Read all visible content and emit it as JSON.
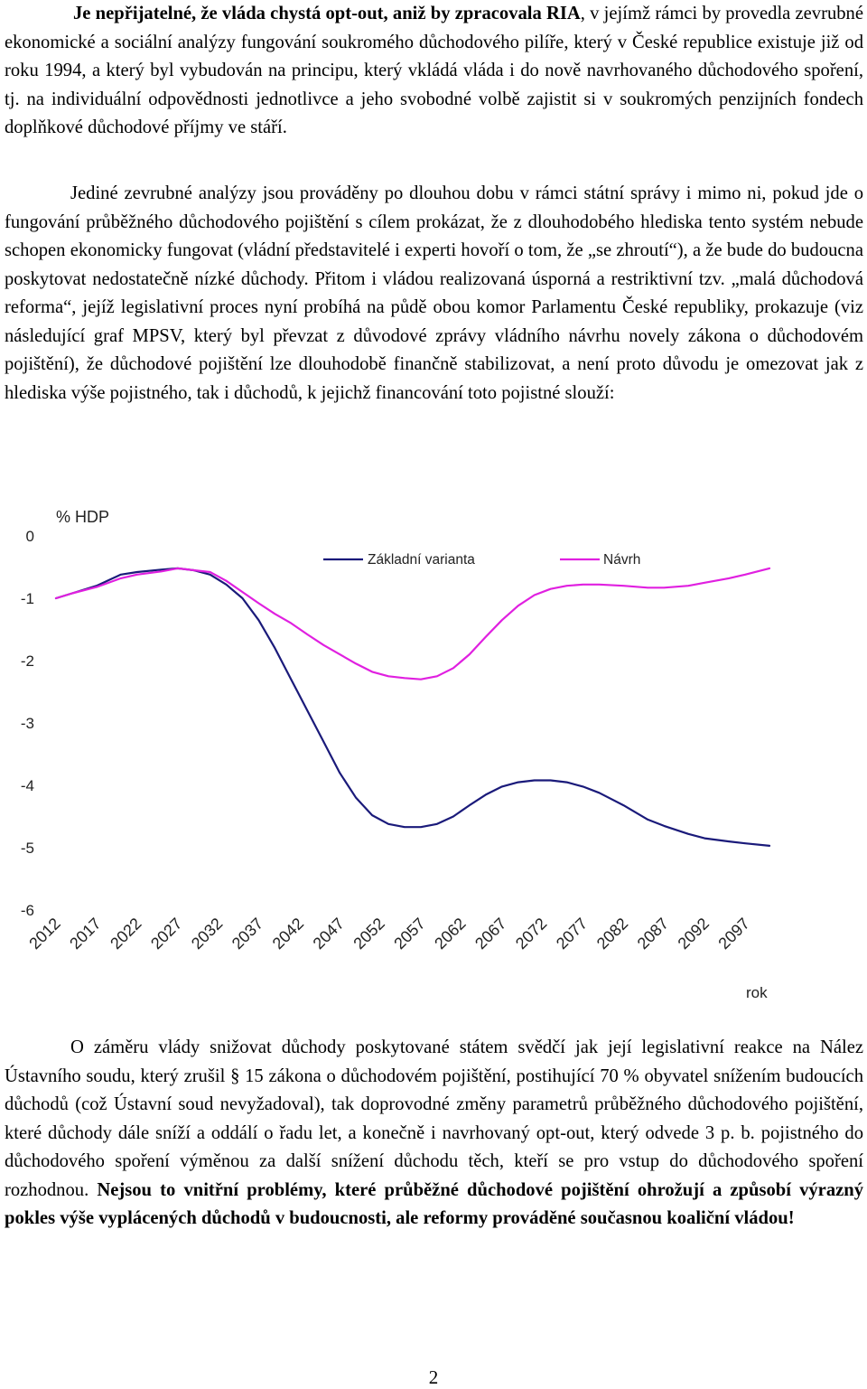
{
  "paragraphs": {
    "p1": {
      "lead_bold": "Je nepřijatelné, že vláda chystá opt-out, aniž by zpracovala RIA",
      "rest": ", v jejímž rámci by provedla zevrubné ekonomické a sociální analýzy fungování soukromého důchodového pilíře, který v České republice existuje již od roku 1994, a který byl vybudován na principu, který vkládá vláda i do nově navrhovaného důchodového spoření, tj. na individuální odpovědnosti jednotlivce a jeho svobodné volbě zajistit si v soukromých penzijních fondech doplňkové důchodové příjmy ve stáří."
    },
    "p2": {
      "text": "Jediné zevrubné analýzy jsou prováděny po dlouhou dobu v rámci státní správy i mimo ni, pokud jde o fungování průběžného důchodového pojištění s cílem prokázat, že z dlouhodobého hlediska tento systém nebude schopen ekonomicky fungovat (vládní představitelé i experti hovoří o tom, že „se zhroutí“), a že bude do budoucna poskytovat nedostatečně nízké důchody. Přitom i vládou realizovaná úsporná a restriktivní tzv. „malá důchodová reforma“, jejíž legislativní proces nyní probíhá na půdě obou komor Parlamentu České republiky, prokazuje (viz následující graf MPSV, který byl převzat z důvodové zprávy vládního návrhu novely zákona o důchodovém pojištění), že důchodové pojištění lze dlouhodobě finančně stabilizovat, a není proto důvodu je omezovat jak z hlediska výše pojistného, tak i důchodů, k jejichž financování toto pojistné slouží:"
    },
    "p3": {
      "text": "O záměru vlády snižovat důchody poskytované státem svědčí jak její legislativní reakce na Nález Ústavního soudu, který zrušil § 15 zákona o důchodovém pojištění, postihující 70 % obyvatel snížením budoucích důchodů (což Ústavní soud nevyžadoval), tak doprovodné změny parametrů průběžného důchodového pojištění, které důchody dále sníží a oddálí o řadu let, a konečně i navrhovaný opt-out, který odvede 3 p. b. pojistného do důchodového spoření výměnou za další snížení důchodu těch, kteří se pro vstup do důchodového spoření rozhodnou. ",
      "tail_bold": "Nejsou to vnitřní problémy, které průběžné důchodové pojištění ohrožují a způsobí výrazný pokles výše vyplácených důchodů v budoucnosti, ale reformy prováděné současnou koaliční vládou!"
    }
  },
  "chart_data": {
    "type": "line",
    "ylabel": "% HDP",
    "xlabel": "rok",
    "ylim": [
      -6,
      0
    ],
    "yticks": [
      0,
      -1,
      -2,
      -3,
      -4,
      -5,
      -6
    ],
    "xticks": [
      2012,
      2017,
      2022,
      2027,
      2032,
      2037,
      2042,
      2047,
      2052,
      2057,
      2062,
      2067,
      2072,
      2077,
      2082,
      2087,
      2092,
      2097
    ],
    "legend_placement": "top",
    "grid": false,
    "series": [
      {
        "name": "Základní varianta",
        "color": "#1a1a7a",
        "x": [
          2012,
          2014,
          2017,
          2020,
          2022,
          2025,
          2027,
          2029,
          2031,
          2033,
          2035,
          2037,
          2039,
          2041,
          2043,
          2045,
          2047,
          2049,
          2051,
          2053,
          2055,
          2057,
          2059,
          2061,
          2063,
          2065,
          2067,
          2069,
          2071,
          2073,
          2075,
          2077,
          2079,
          2082,
          2085,
          2087,
          2090,
          2092,
          2095,
          2097,
          2100
        ],
        "values": [
          -1.0,
          -0.92,
          -0.8,
          -0.62,
          -0.58,
          -0.54,
          -0.52,
          -0.55,
          -0.62,
          -0.78,
          -1.0,
          -1.35,
          -1.8,
          -2.3,
          -2.8,
          -3.3,
          -3.8,
          -4.2,
          -4.48,
          -4.62,
          -4.67,
          -4.67,
          -4.62,
          -4.5,
          -4.32,
          -4.15,
          -4.02,
          -3.95,
          -3.92,
          -3.92,
          -3.95,
          -4.02,
          -4.12,
          -4.32,
          -4.55,
          -4.65,
          -4.78,
          -4.85,
          -4.9,
          -4.93,
          -4.97
        ]
      },
      {
        "name": "Návrh",
        "color": "#e020e0",
        "x": [
          2012,
          2014,
          2017,
          2020,
          2022,
          2025,
          2027,
          2029,
          2031,
          2033,
          2035,
          2037,
          2039,
          2041,
          2043,
          2045,
          2047,
          2049,
          2051,
          2053,
          2055,
          2057,
          2059,
          2061,
          2063,
          2065,
          2067,
          2069,
          2071,
          2073,
          2075,
          2077,
          2079,
          2082,
          2085,
          2087,
          2090,
          2092,
          2095,
          2097,
          2100
        ],
        "values": [
          -1.0,
          -0.92,
          -0.82,
          -0.68,
          -0.62,
          -0.57,
          -0.52,
          -0.55,
          -0.58,
          -0.72,
          -0.9,
          -1.08,
          -1.25,
          -1.4,
          -1.58,
          -1.75,
          -1.9,
          -2.05,
          -2.18,
          -2.25,
          -2.28,
          -2.3,
          -2.25,
          -2.12,
          -1.9,
          -1.62,
          -1.35,
          -1.12,
          -0.95,
          -0.85,
          -0.8,
          -0.78,
          -0.78,
          -0.8,
          -0.83,
          -0.83,
          -0.8,
          -0.75,
          -0.68,
          -0.62,
          -0.52
        ]
      }
    ]
  },
  "page_number": "2"
}
